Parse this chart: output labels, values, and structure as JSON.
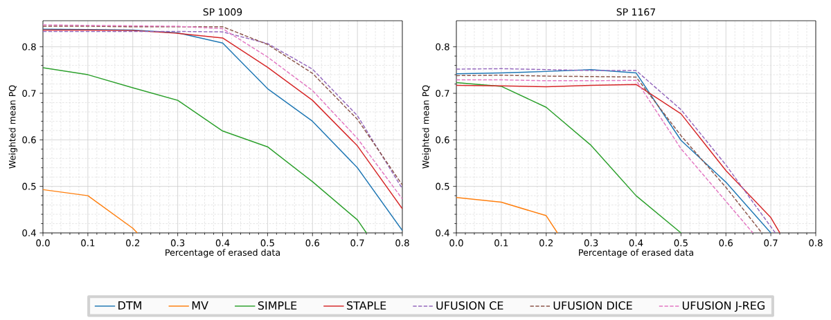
{
  "chart_data": [
    {
      "type": "line",
      "title": "SP 1009",
      "xlabel": "Percentage of erased data",
      "ylabel": "Weighted mean PQ",
      "x": [
        0,
        0.1,
        0.2,
        0.3,
        0.4,
        0.5,
        0.6,
        0.7,
        0.8
      ],
      "xlim": [
        0,
        0.8
      ],
      "ylim": [
        0.4,
        0.856
      ],
      "xticks": [
        {
          "value": 0,
          "label": "0.0"
        },
        0.1,
        0.2,
        0.3,
        0.4,
        0.5,
        0.6,
        0.7,
        0.8
      ],
      "yticks": [
        0.4,
        0.5,
        0.6,
        0.7,
        0.8
      ],
      "grid": true,
      "legend": "bottom",
      "series": [
        {
          "name": "DTM",
          "color": "#1f77b4",
          "values": [
            0.838,
            0.837,
            0.836,
            0.83,
            0.808,
            0.71,
            0.64,
            0.54,
            0.405
          ]
        },
        {
          "name": "MV",
          "color": "#ff7f0e",
          "x": [
            0,
            0.1,
            0.2,
            0.21
          ],
          "values": [
            0.493,
            0.48,
            0.41,
            0.4
          ]
        },
        {
          "name": "SIMPLE",
          "color": "#2ca02c",
          "x": [
            0,
            0.1,
            0.2,
            0.3,
            0.4,
            0.5,
            0.6,
            0.7,
            0.72
          ],
          "values": [
            0.755,
            0.74,
            0.712,
            0.685,
            0.619,
            0.585,
            0.51,
            0.428,
            0.4
          ]
        },
        {
          "name": "STAPLE",
          "color": "#d62728",
          "values": [
            0.836,
            0.836,
            0.835,
            0.829,
            0.819,
            0.756,
            0.685,
            0.587,
            0.452
          ]
        },
        {
          "name": "UFUSION CE",
          "color": "#9467bd",
          "line_style": "dashed",
          "values": [
            0.833,
            0.833,
            0.833,
            0.833,
            0.832,
            0.807,
            0.752,
            0.652,
            0.495
          ]
        },
        {
          "name": "UFUSION DICE",
          "color": "#8c564b",
          "line_style": "dashed",
          "values": [
            0.844,
            0.844,
            0.843,
            0.843,
            0.843,
            0.805,
            0.743,
            0.644,
            0.503
          ]
        },
        {
          "name": "UFUSION J-REG",
          "color": "#e377c2",
          "line_style": "dashed",
          "values": [
            0.847,
            0.846,
            0.845,
            0.844,
            0.839,
            0.778,
            0.706,
            0.603,
            0.473
          ]
        }
      ]
    },
    {
      "type": "line",
      "title": "SP 1167",
      "xlabel": "Percentage of erased data",
      "ylabel": "Weighted mean PQ",
      "x": [
        0,
        0.1,
        0.2,
        0.3,
        0.4,
        0.5,
        0.6,
        0.7
      ],
      "xlim": [
        0,
        0.8
      ],
      "ylim": [
        0.4,
        0.856
      ],
      "xticks": [
        {
          "value": 0,
          "label": "0.0"
        },
        0.1,
        0.2,
        0.3,
        0.4,
        0.5,
        0.6,
        0.7,
        0.8
      ],
      "yticks": [
        0.4,
        0.5,
        0.6,
        0.7,
        0.8
      ],
      "grid": true,
      "series": [
        {
          "color": "#1f77b4",
          "values": [
            0.742,
            0.744,
            0.747,
            0.751,
            0.744,
            0.599,
            0.509,
            0.4
          ]
        },
        {
          "color": "#ff7f0e",
          "x": [
            0,
            0.1,
            0.2,
            0.225
          ],
          "values": [
            0.476,
            0.466,
            0.437,
            0.4
          ]
        },
        {
          "color": "#2ca02c",
          "x": [
            0,
            0.1,
            0.2,
            0.3,
            0.4,
            0.5
          ],
          "values": [
            0.723,
            0.715,
            0.67,
            0.588,
            0.48,
            0.4
          ]
        },
        {
          "color": "#d62728",
          "x": [
            0,
            0.1,
            0.2,
            0.3,
            0.4,
            0.5,
            0.6,
            0.7,
            0.72
          ],
          "values": [
            0.717,
            0.716,
            0.714,
            0.717,
            0.719,
            0.656,
            0.534,
            0.433,
            0.4
          ]
        },
        {
          "color": "#9467bd",
          "line_style": "dashed",
          "x": [
            0,
            0.1,
            0.2,
            0.3,
            0.4,
            0.5,
            0.6,
            0.71
          ],
          "values": [
            0.752,
            0.753,
            0.751,
            0.749,
            0.749,
            0.665,
            0.546,
            0.4
          ]
        },
        {
          "color": "#8c564b",
          "line_style": "dashed",
          "x": [
            0,
            0.1,
            0.2,
            0.3,
            0.4,
            0.5,
            0.6,
            0.68
          ],
          "values": [
            0.738,
            0.739,
            0.737,
            0.736,
            0.735,
            0.609,
            0.498,
            0.4
          ]
        },
        {
          "color": "#e377c2",
          "line_style": "dashed",
          "x": [
            0,
            0.1,
            0.2,
            0.3,
            0.4,
            0.5,
            0.6,
            0.66
          ],
          "values": [
            0.729,
            0.729,
            0.727,
            0.727,
            0.728,
            0.581,
            0.468,
            0.4
          ]
        }
      ]
    }
  ]
}
